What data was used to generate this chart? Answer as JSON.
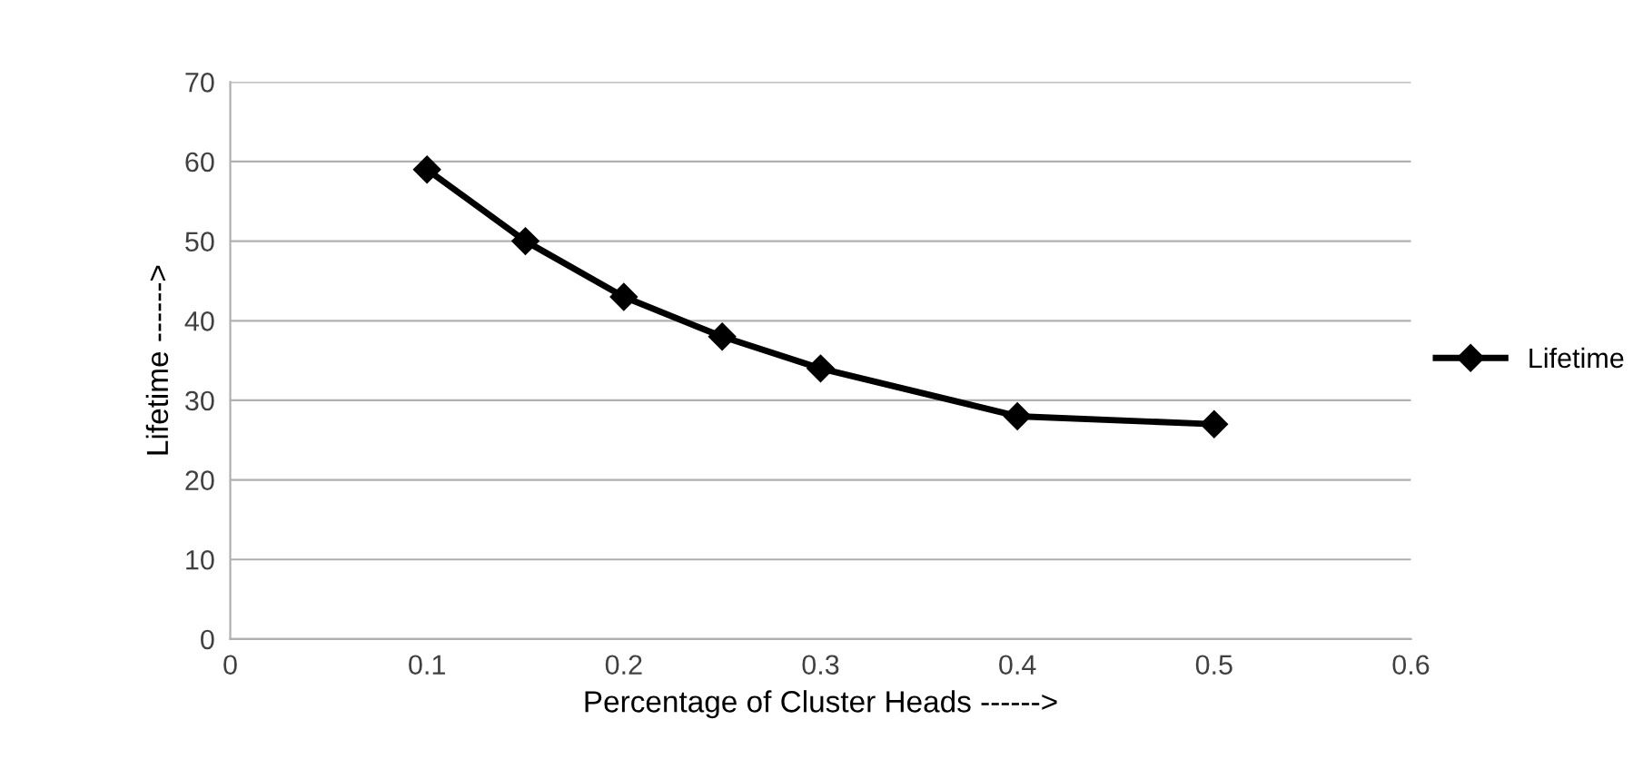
{
  "chart_data": {
    "type": "line",
    "xlabel": "Percentage of Cluster Heads ------>",
    "ylabel": "Lifetime ------>",
    "x": [
      0.1,
      0.15,
      0.2,
      0.25,
      0.3,
      0.4,
      0.5
    ],
    "series": [
      {
        "name": "Lifetime",
        "color": "#000000",
        "values": [
          59,
          50,
          43,
          38,
          34,
          28,
          27
        ]
      }
    ],
    "xlim": [
      0,
      0.6
    ],
    "xticks": [
      0,
      0.1,
      0.2,
      0.3,
      0.4,
      0.5,
      0.6
    ],
    "ylim": [
      0,
      70
    ],
    "yticks": [
      0,
      10,
      20,
      30,
      40,
      50,
      60,
      70
    ],
    "grid": "y",
    "legend": "right",
    "marker": "diamond",
    "line_style": "solid"
  }
}
